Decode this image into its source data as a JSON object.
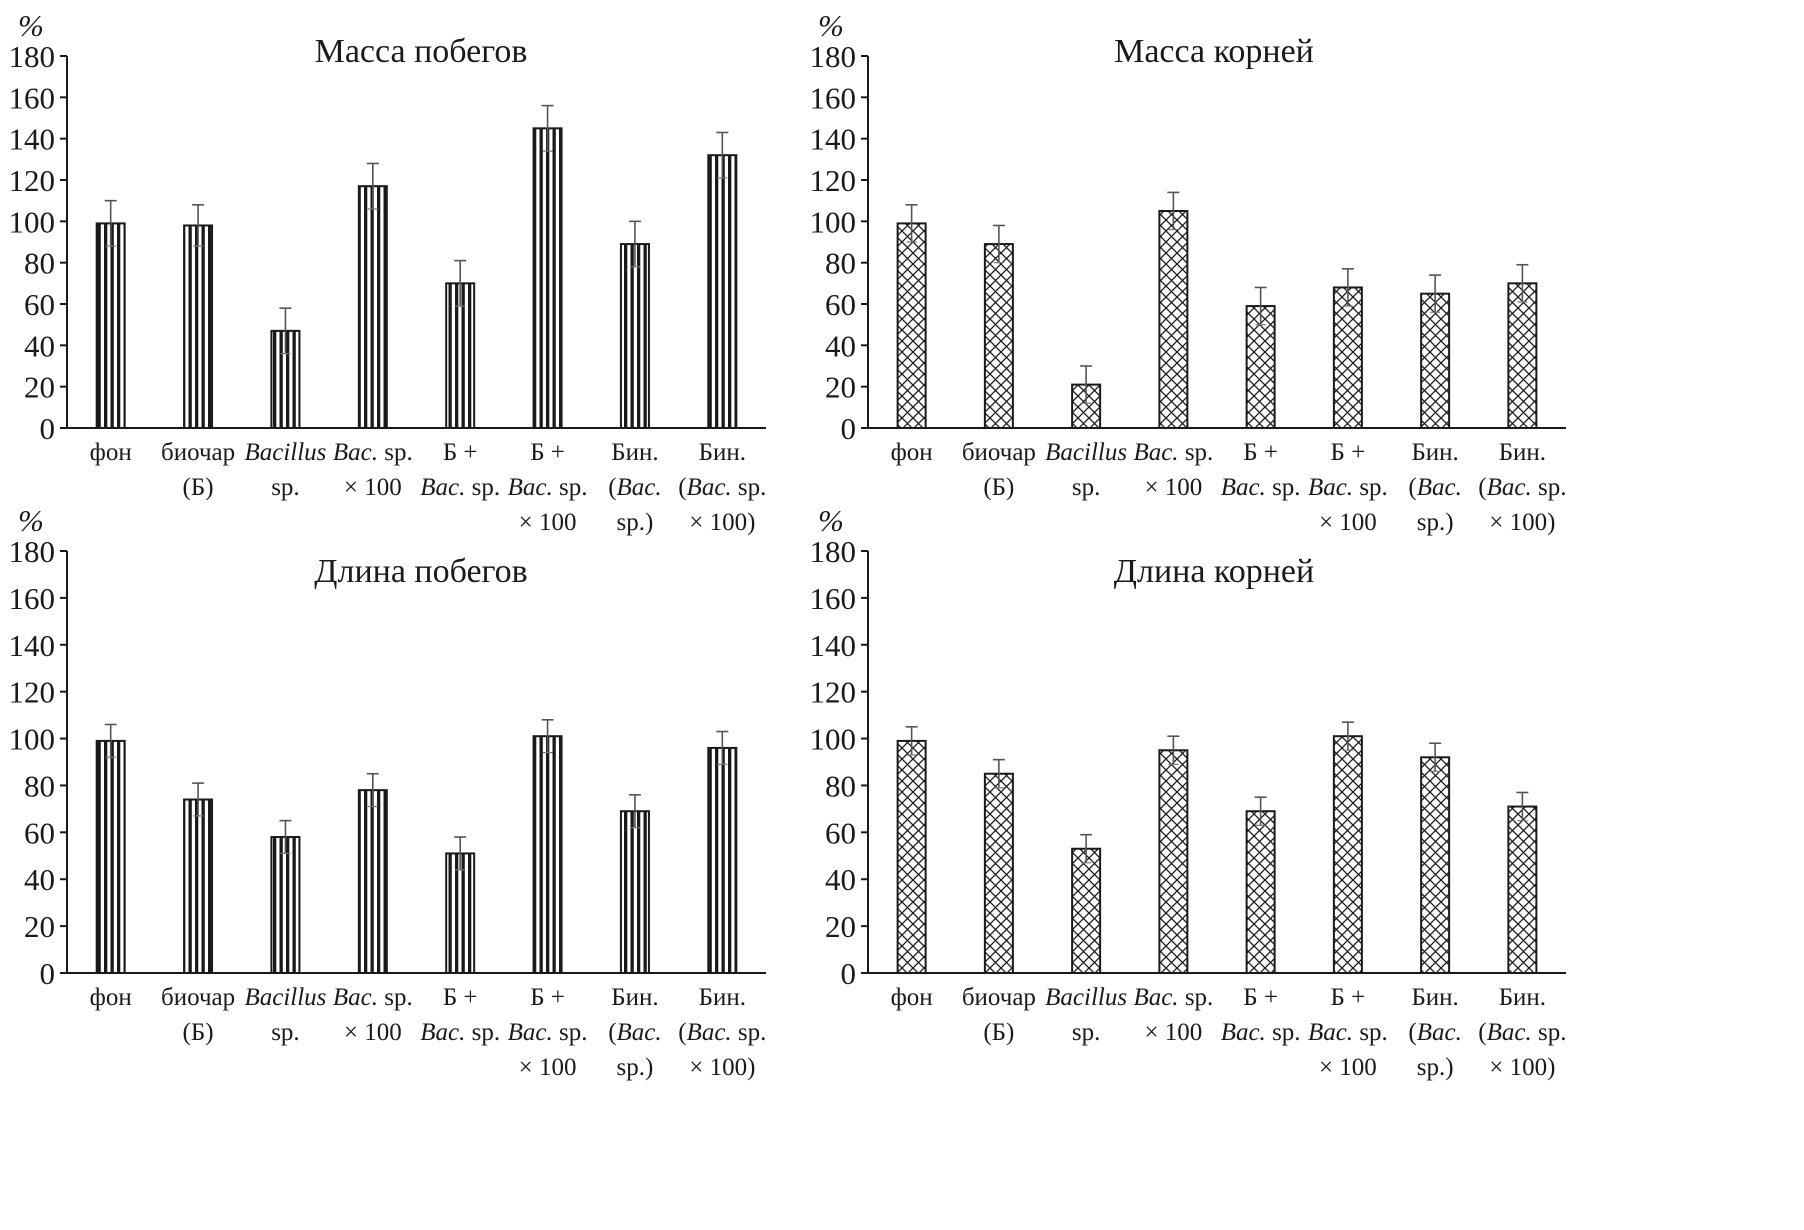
{
  "figure": {
    "background": "#ffffff",
    "ink": "#1a1a1a"
  },
  "chart_data": [
    {
      "type": "bar",
      "title": "Масса побегов",
      "ylabel": "%",
      "xlabel": "",
      "ylim": [
        0,
        180
      ],
      "yticks": [
        0,
        20,
        40,
        60,
        80,
        100,
        120,
        140,
        160,
        180
      ],
      "pattern": "vertical-stripes",
      "categories": [
        [
          "фон"
        ],
        [
          "биочар",
          "(Б)"
        ],
        [
          "*Bacillus*",
          "sp."
        ],
        [
          "*Bac.* sp.",
          "× 100"
        ],
        [
          "Б +",
          "*Bac.* sp."
        ],
        [
          "Б +",
          "*Bac.* sp.",
          "× 100"
        ],
        [
          "Бин.",
          "(*Bac.*",
          "sp.)"
        ],
        [
          "Бин.",
          "(*Bac.* sp.",
          "× 100)"
        ]
      ],
      "values": [
        99,
        98,
        47,
        117,
        70,
        145,
        89,
        132
      ],
      "errors": [
        11,
        10,
        11,
        11,
        11,
        11,
        11,
        11
      ]
    },
    {
      "type": "bar",
      "title": "Масса корней",
      "ylabel": "%",
      "xlabel": "",
      "ylim": [
        0,
        180
      ],
      "yticks": [
        0,
        20,
        40,
        60,
        80,
        100,
        120,
        140,
        160,
        180
      ],
      "pattern": "crosshatch",
      "categories": [
        [
          "фон"
        ],
        [
          "биочар",
          "(Б)"
        ],
        [
          "*Bacillus*",
          "sp."
        ],
        [
          "*Bac.* sp.",
          "× 100"
        ],
        [
          "Б +",
          "*Bac.* sp."
        ],
        [
          "Б +",
          "*Bac.* sp.",
          "× 100"
        ],
        [
          "Бин.",
          "(*Bac.*",
          "sp.)"
        ],
        [
          "Бин.",
          "(*Bac.* sp.",
          "× 100)"
        ]
      ],
      "values": [
        99,
        89,
        21,
        105,
        59,
        68,
        65,
        70
      ],
      "errors": [
        9,
        9,
        9,
        9,
        9,
        9,
        9,
        9
      ]
    },
    {
      "type": "bar",
      "title": "Длина побегов",
      "ylabel": "%",
      "xlabel": "",
      "ylim": [
        0,
        180
      ],
      "yticks": [
        0,
        20,
        40,
        60,
        80,
        100,
        120,
        140,
        160,
        180
      ],
      "pattern": "vertical-stripes",
      "categories": [
        [
          "фон"
        ],
        [
          "биочар",
          "(Б)"
        ],
        [
          "*Bacillus*",
          "sp."
        ],
        [
          "*Bac.* sp.",
          "× 100"
        ],
        [
          "Б +",
          "*Bac.* sp."
        ],
        [
          "Б +",
          "*Bac.* sp.",
          "× 100"
        ],
        [
          "Бин.",
          "(*Bac.*",
          "sp.)"
        ],
        [
          "Бин.",
          "(*Bac.* sp.",
          "× 100)"
        ]
      ],
      "values": [
        99,
        74,
        58,
        78,
        51,
        101,
        69,
        96
      ],
      "errors": [
        7,
        7,
        7,
        7,
        7,
        7,
        7,
        7
      ]
    },
    {
      "type": "bar",
      "title": "Длина корней",
      "ylabel": "%",
      "xlabel": "",
      "ylim": [
        0,
        180
      ],
      "yticks": [
        0,
        20,
        40,
        60,
        80,
        100,
        120,
        140,
        160,
        180
      ],
      "pattern": "crosshatch",
      "categories": [
        [
          "фон"
        ],
        [
          "биочар",
          "(Б)"
        ],
        [
          "*Bacillus*",
          "sp."
        ],
        [
          "*Bac.* sp.",
          "× 100"
        ],
        [
          "Б +",
          "*Bac.* sp."
        ],
        [
          "Б +",
          "*Bac.* sp.",
          "× 100"
        ],
        [
          "Бин.",
          "(*Bac.*",
          "sp.)"
        ],
        [
          "Бин.",
          "(*Bac.* sp.",
          "× 100)"
        ]
      ],
      "values": [
        99,
        85,
        53,
        95,
        69,
        101,
        92,
        71
      ],
      "errors": [
        6,
        6,
        6,
        6,
        6,
        6,
        6,
        6
      ]
    }
  ]
}
